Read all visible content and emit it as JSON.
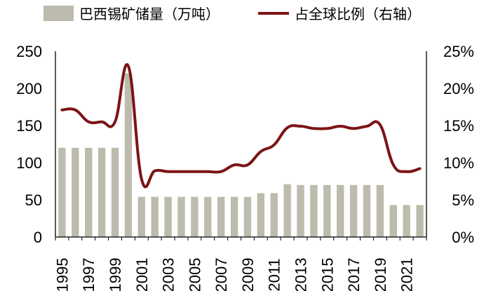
{
  "chart_data": {
    "type": "bar+line",
    "title": "",
    "xlabel": "",
    "ylabel": "",
    "x": [
      1995,
      1996,
      1997,
      1998,
      1999,
      2000,
      2001,
      2002,
      2003,
      2004,
      2005,
      2006,
      2007,
      2008,
      2009,
      2010,
      2011,
      2012,
      2013,
      2014,
      2015,
      2016,
      2017,
      2018,
      2019,
      2020,
      2021,
      2022
    ],
    "x_tick_labels": [
      "1995",
      "1997",
      "1999",
      "2001",
      "2003",
      "2005",
      "2007",
      "2009",
      "2011",
      "2013",
      "2015",
      "2017",
      "2019",
      "2021"
    ],
    "y_left": {
      "range": [
        0,
        250
      ],
      "ticks": [
        "0",
        "50",
        "100",
        "150",
        "200",
        "250"
      ]
    },
    "y_right": {
      "range": [
        0,
        25
      ],
      "ticks": [
        "0%",
        "5%",
        "10%",
        "15%",
        "20%",
        "25%"
      ]
    },
    "series": [
      {
        "name": "巴西锡矿储量（万吨）",
        "type": "bar",
        "axis": "left",
        "color": "#bdbbad",
        "values": [
          120,
          120,
          120,
          120,
          120,
          220,
          54,
          54,
          54,
          54,
          54,
          54,
          54,
          54,
          54,
          59,
          59,
          71,
          70,
          70,
          70,
          70,
          70,
          70,
          70,
          43,
          43,
          43
        ]
      },
      {
        "name": "占全球比例（右轴）",
        "type": "line",
        "axis": "right",
        "color": "#7b1416",
        "values": [
          17.1,
          17.1,
          15.5,
          15.5,
          15.5,
          23.0,
          7.8,
          8.9,
          8.8,
          8.8,
          8.8,
          8.8,
          8.8,
          9.7,
          9.7,
          11.5,
          12.4,
          14.7,
          14.9,
          14.6,
          14.6,
          14.9,
          14.6,
          14.9,
          15.1,
          9.7,
          8.8,
          9.2
        ]
      }
    ],
    "legend": "top",
    "grid": false
  }
}
